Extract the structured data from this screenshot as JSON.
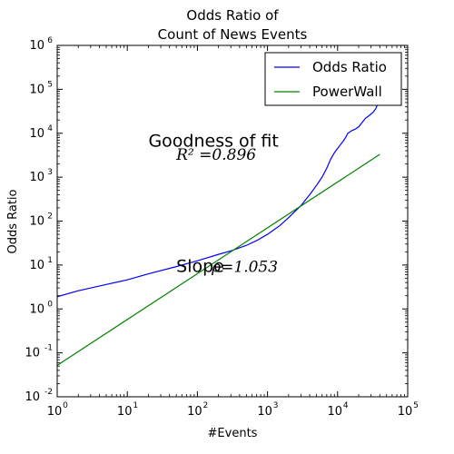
{
  "chart_data": {
    "type": "line",
    "title_lines": [
      "Odds Ratio of",
      "Count of News Events"
    ],
    "xlabel": "#Events",
    "ylabel": "Odds Ratio",
    "x_scale": "log",
    "y_scale": "log",
    "xlim": [
      1,
      100000
    ],
    "ylim": [
      0.01,
      1000000
    ],
    "x_ticks": [
      {
        "value": 1,
        "base": "10",
        "exp": "0"
      },
      {
        "value": 10,
        "base": "10",
        "exp": "1"
      },
      {
        "value": 100,
        "base": "10",
        "exp": "2"
      },
      {
        "value": 1000,
        "base": "10",
        "exp": "3"
      },
      {
        "value": 10000,
        "base": "10",
        "exp": "4"
      },
      {
        "value": 100000,
        "base": "10",
        "exp": "5"
      }
    ],
    "y_ticks": [
      {
        "value": 0.01,
        "base": "10",
        "exp": "-2"
      },
      {
        "value": 0.1,
        "base": "10",
        "exp": "-1"
      },
      {
        "value": 1,
        "base": "10",
        "exp": "0"
      },
      {
        "value": 10,
        "base": "10",
        "exp": "1"
      },
      {
        "value": 100,
        "base": "10",
        "exp": "2"
      },
      {
        "value": 1000,
        "base": "10",
        "exp": "3"
      },
      {
        "value": 10000,
        "base": "10",
        "exp": "4"
      },
      {
        "value": 100000,
        "base": "10",
        "exp": "5"
      },
      {
        "value": 1000000,
        "base": "10",
        "exp": "6"
      }
    ],
    "grid": false,
    "legend_position": "top-right",
    "series": [
      {
        "name": "Odds Ratio",
        "color": "#0000ff",
        "x": [
          1,
          2,
          5,
          10,
          20,
          50,
          100,
          200,
          300,
          500,
          700,
          1000,
          1500,
          2000,
          3000,
          4000,
          5000,
          6000,
          7000,
          8000,
          9000,
          10000,
          11000,
          12000,
          13000,
          14000,
          16000,
          18000,
          20000,
          22000,
          25000,
          28000,
          32000,
          35000,
          38000,
          40000
        ],
        "y": [
          1.9,
          2.6,
          3.6,
          4.6,
          6.3,
          9.2,
          12.5,
          17.5,
          21,
          28,
          36,
          50,
          79,
          120,
          225,
          400,
          650,
          1000,
          1600,
          2600,
          3600,
          4500,
          5500,
          6600,
          8000,
          10000,
          11500,
          12500,
          14000,
          17000,
          22000,
          25000,
          30000,
          36000,
          50000,
          70000
        ]
      },
      {
        "name": "PowerWall",
        "color": "#008000",
        "x": [
          1,
          40000
        ],
        "y": [
          0.052,
          3300
        ]
      }
    ],
    "annotations": [
      {
        "id": "fit-title",
        "text": "Goodness of fit",
        "color": "#ff0000",
        "x": 20,
        "y": 5000
      },
      {
        "id": "r2",
        "text": "R² =0.896",
        "color": "#ff0000",
        "x": 50,
        "y": 2500
      },
      {
        "id": "slope",
        "text": "Slope",
        "color": "#000000",
        "x": 50,
        "y": 7
      },
      {
        "id": "rho",
        "text": "ρ=1.053",
        "color": "#000000",
        "x": 160,
        "y": 7
      }
    ]
  }
}
